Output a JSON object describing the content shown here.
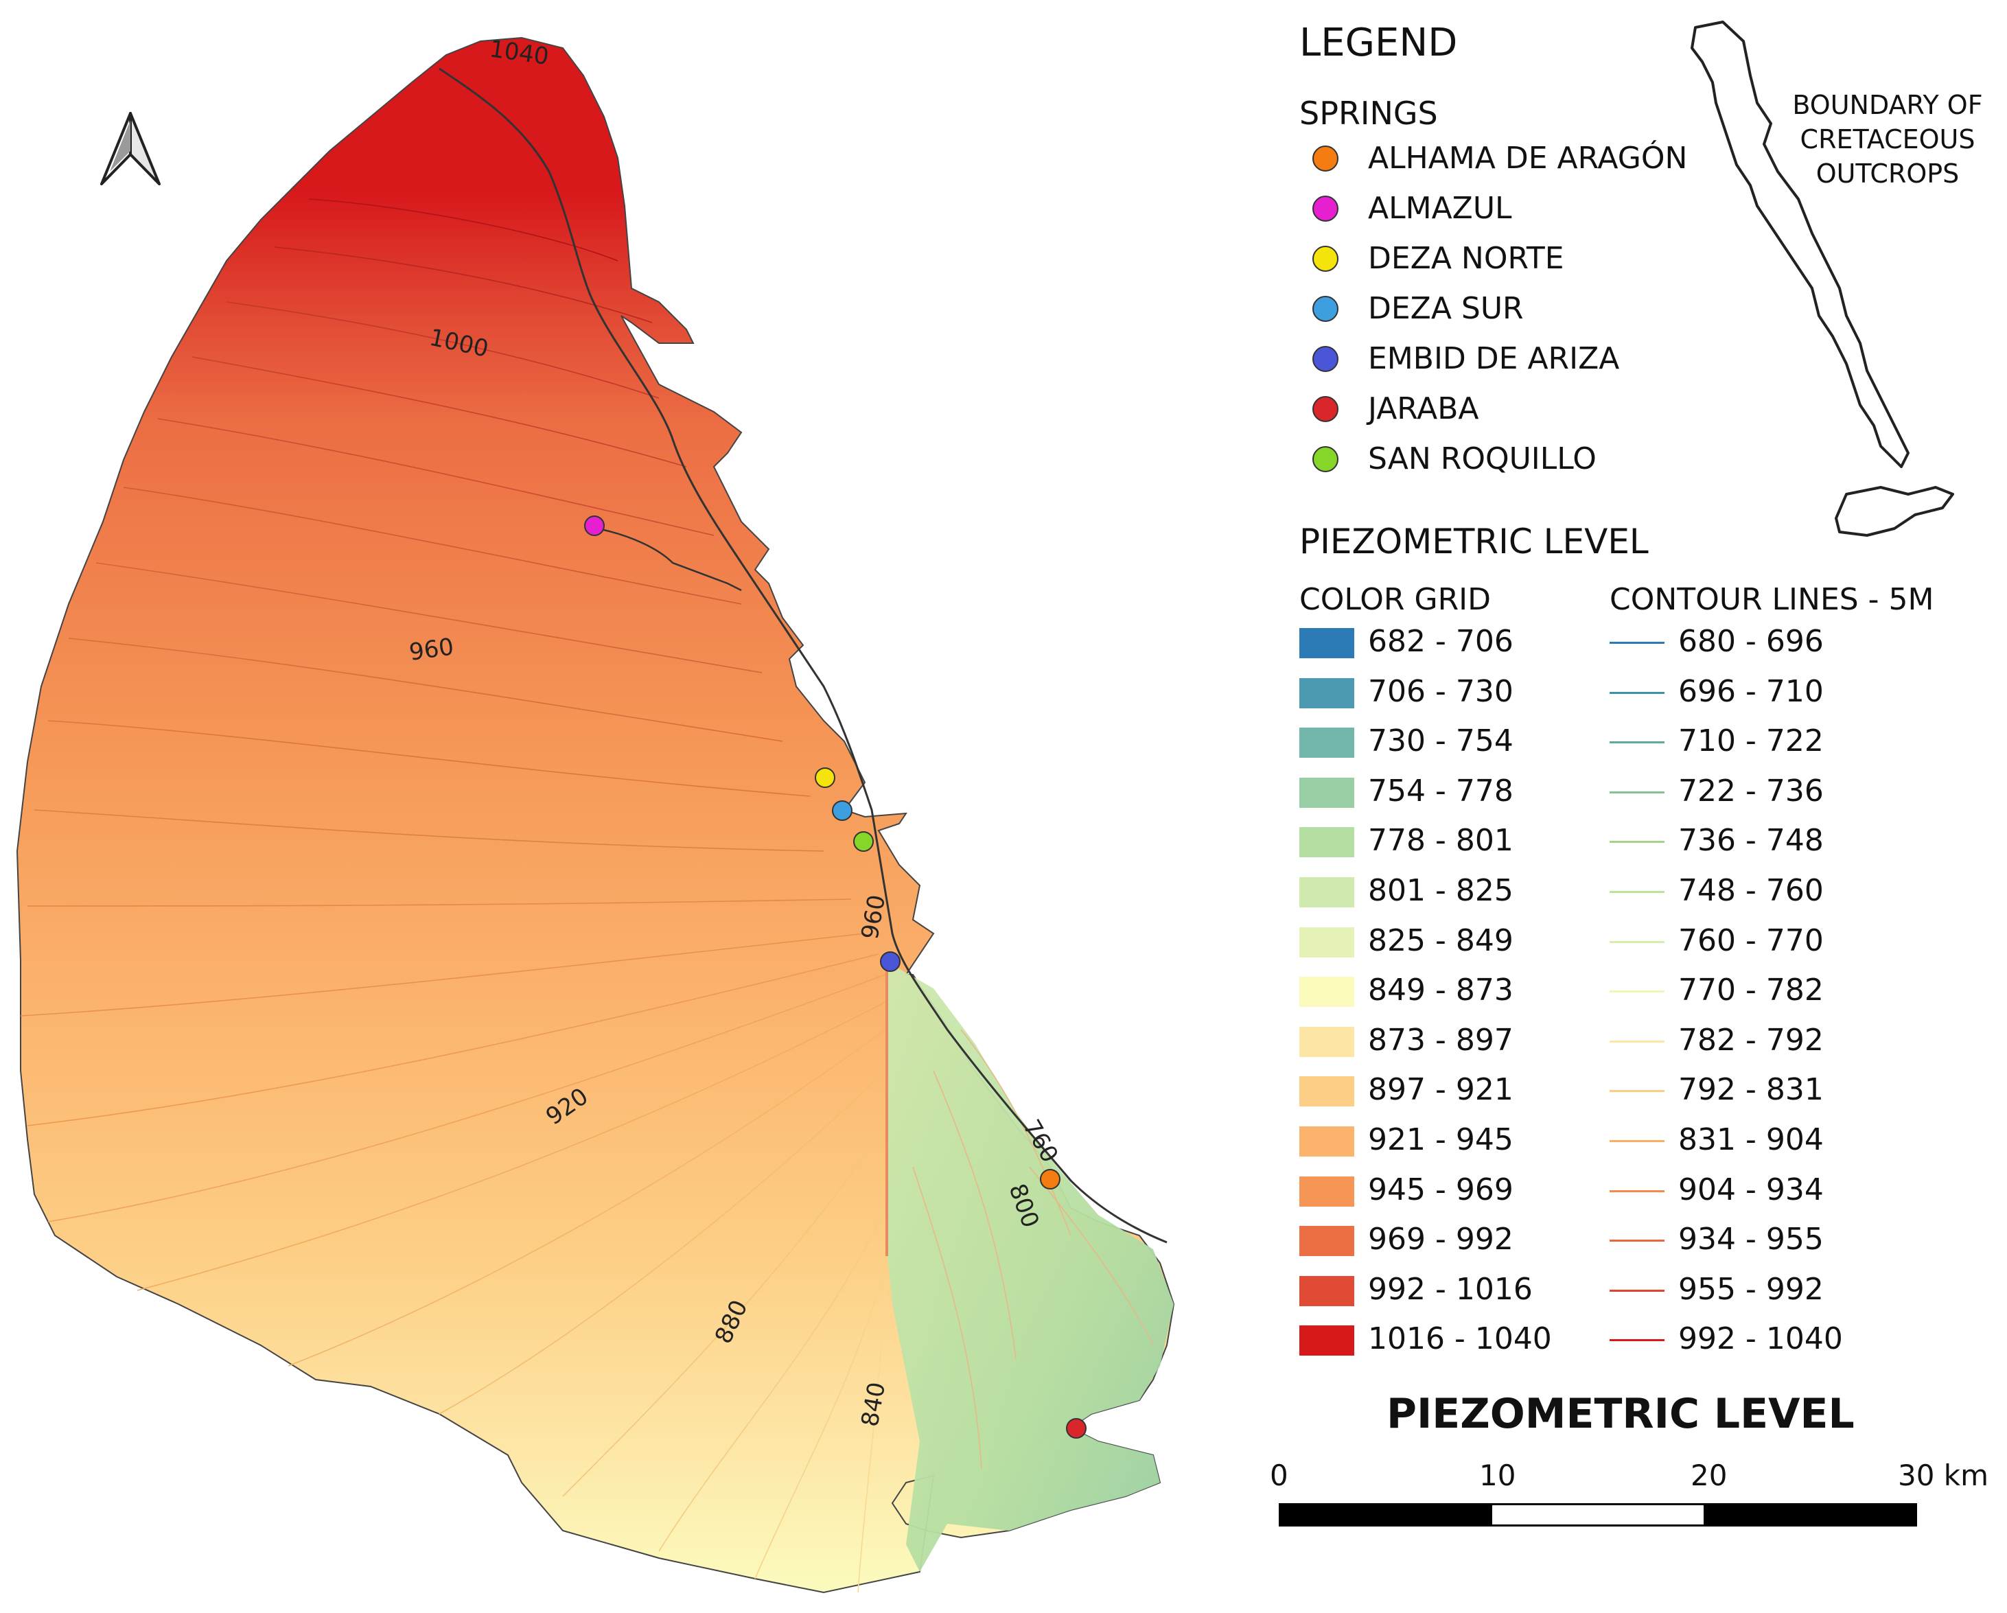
{
  "legend": {
    "title": "LEGEND",
    "springs_title": "SPRINGS",
    "springs": [
      {
        "label": "ALHAMA DE ARAGÓN",
        "color": "#f47c10"
      },
      {
        "label": "ALMAZUL",
        "color": "#e61fd0"
      },
      {
        "label": "DEZA NORTE",
        "color": "#f5e40c"
      },
      {
        "label": "DEZA SUR",
        "color": "#3d9fe0"
      },
      {
        "label": "EMBID DE ARIZA",
        "color": "#4a55d8"
      },
      {
        "label": "JARABA",
        "color": "#d9262a"
      },
      {
        "label": "SAN ROQUILLO",
        "color": "#86d62a"
      }
    ],
    "piezometric_title": "PIEZOMETRIC LEVEL",
    "color_grid_title": "COLOR GRID",
    "contour_title": "CONTOUR LINES - 5M",
    "color_grid": [
      {
        "label": "682 - 706",
        "color": "#2c7bb6"
      },
      {
        "label": "706 - 730",
        "color": "#4b9ab2"
      },
      {
        "label": "730 - 754",
        "color": "#72b6ac"
      },
      {
        "label": "754 - 778",
        "color": "#97cea4"
      },
      {
        "label": "778 - 801",
        "color": "#b5dea2"
      },
      {
        "label": "801 - 825",
        "color": "#cfe9ae"
      },
      {
        "label": "825 - 849",
        "color": "#e4f2b8"
      },
      {
        "label": "849 - 873",
        "color": "#fbfbbe"
      },
      {
        "label": "873 - 897",
        "color": "#fde5a5"
      },
      {
        "label": "897 - 921",
        "color": "#fdce85"
      },
      {
        "label": "921 - 945",
        "color": "#fbb36d"
      },
      {
        "label": "945 - 969",
        "color": "#f59656"
      },
      {
        "label": "969 - 992",
        "color": "#ec6e44"
      },
      {
        "label": "992 - 1016",
        "color": "#e14a34"
      },
      {
        "label": "1016 - 1040",
        "color": "#d7191c"
      }
    ],
    "contour_lines": [
      {
        "label": "680 - 696",
        "color": "#2c7bb6"
      },
      {
        "label": "696 - 710",
        "color": "#3f93a8"
      },
      {
        "label": "710 - 722",
        "color": "#62ab9c"
      },
      {
        "label": "722 - 736",
        "color": "#86c294"
      },
      {
        "label": "736 - 748",
        "color": "#a3d38c"
      },
      {
        "label": "748 - 760",
        "color": "#bde39a"
      },
      {
        "label": "760 - 770",
        "color": "#d7efae"
      },
      {
        "label": "770 - 782",
        "color": "#eef7b6"
      },
      {
        "label": "782 - 792",
        "color": "#fde6a0"
      },
      {
        "label": "792 - 831",
        "color": "#fdcd84"
      },
      {
        "label": "831 - 904",
        "color": "#fbae66"
      },
      {
        "label": "904 - 934",
        "color": "#f58a4e"
      },
      {
        "label": "934 - 955",
        "color": "#ea6540"
      },
      {
        "label": "955 - 992",
        "color": "#e04432"
      },
      {
        "label": "992 - 1040",
        "color": "#d7191c"
      }
    ]
  },
  "inset": {
    "label": "BOUNDARY OF CRETACEOUS OUTCROPS"
  },
  "scale_bar": {
    "title": "PIEZOMETRIC LEVEL",
    "ticks": [
      "0",
      "10",
      "20",
      "30 km"
    ]
  },
  "map": {
    "contour_labels": [
      "1040",
      "1000",
      "960",
      "920",
      "880",
      "840",
      "960",
      "760",
      "800"
    ],
    "north_arrow": "north-arrow-icon"
  }
}
